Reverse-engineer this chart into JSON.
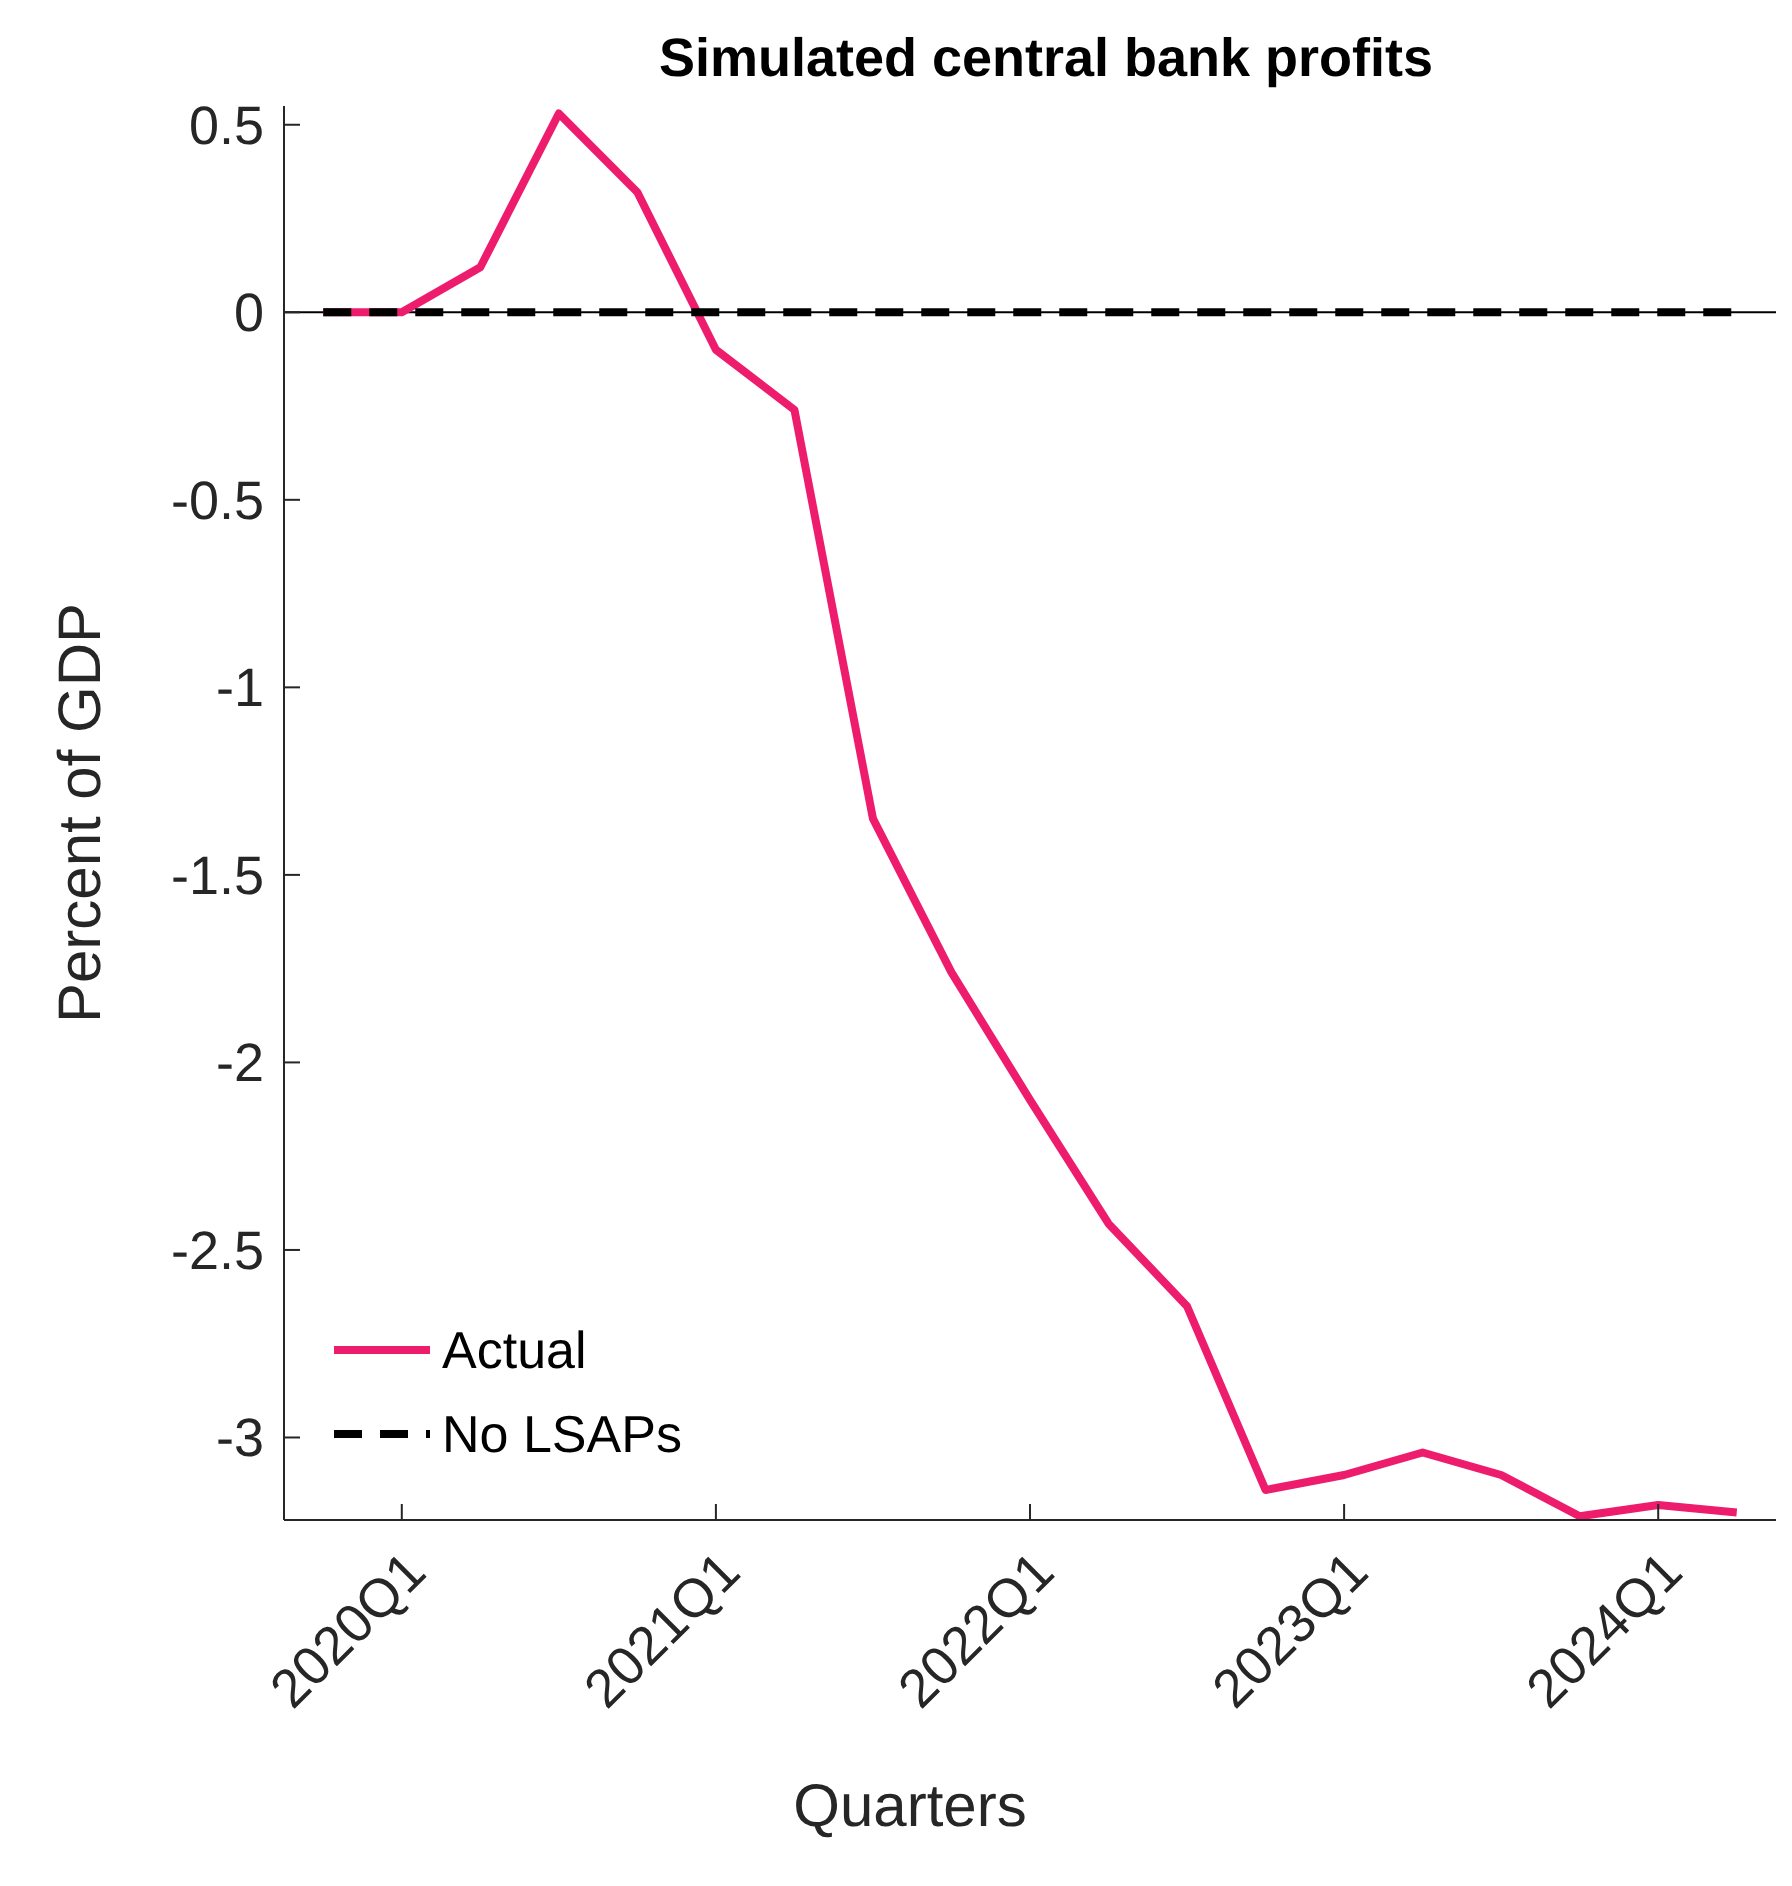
{
  "chart_data": {
    "type": "line",
    "title": "Simulated central bank profits",
    "xlabel": "Quarters",
    "ylabel": "Percent of GDP",
    "categories": [
      null,
      "2020Q1",
      null,
      null,
      null,
      "2021Q1",
      null,
      null,
      null,
      "2022Q1",
      null,
      null,
      null,
      "2023Q1",
      null,
      null,
      null,
      "2024Q1",
      null
    ],
    "ylim": [
      -3.22,
      0.55
    ],
    "yticks": [
      0.5,
      0,
      -0.5,
      -1,
      -1.5,
      -2,
      -2.5,
      -3
    ],
    "series": [
      {
        "name": "Actual",
        "color": "#ee1c6c",
        "line_style": "solid",
        "values": [
          0,
          0,
          0.12,
          0.53,
          0.32,
          -0.1,
          -0.26,
          -1.35,
          -1.76,
          -2.1,
          -2.43,
          -2.65,
          -3.14,
          -3.1,
          -3.04,
          -3.1,
          -3.21,
          -3.18,
          -3.2
        ]
      },
      {
        "name": "No LSAPs",
        "color": "#000000",
        "line_style": "dashed",
        "values": [
          0,
          0,
          0,
          0,
          0,
          0,
          0,
          0,
          0,
          0,
          0,
          0,
          0,
          0,
          0,
          0,
          0,
          0,
          0
        ]
      }
    ],
    "ref_lines": [
      {
        "axis": "y",
        "value": 0,
        "color": "#000000"
      }
    ],
    "grid": false,
    "legend": "bottom left"
  }
}
